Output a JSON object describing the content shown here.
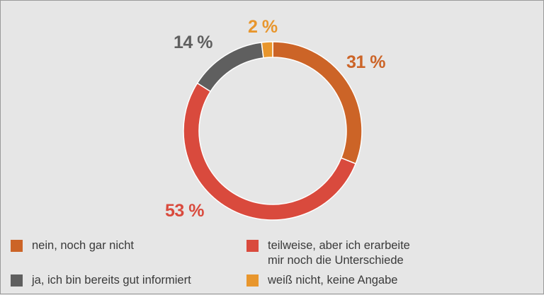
{
  "chart_data": {
    "type": "pie",
    "variant": "donut",
    "legend_position": "bottom",
    "series": [
      {
        "key": "nein",
        "label": "nein, noch gar nicht",
        "value": 31,
        "display": "31 %",
        "color": "#cc6427"
      },
      {
        "key": "teilweise",
        "label": "teilweise, aber ich erarbeite\nmir noch die Unterschiede",
        "value": 53,
        "display": "53 %",
        "color": "#d94a3d"
      },
      {
        "key": "ja",
        "label": "ja, ich bin bereits gut informiert",
        "value": 14,
        "display": "14 %",
        "color": "#5f5f5f"
      },
      {
        "key": "weiss",
        "label": "weiß nicht, keine Angabe",
        "value": 2,
        "display": "2 %",
        "color": "#e8962d"
      }
    ]
  }
}
